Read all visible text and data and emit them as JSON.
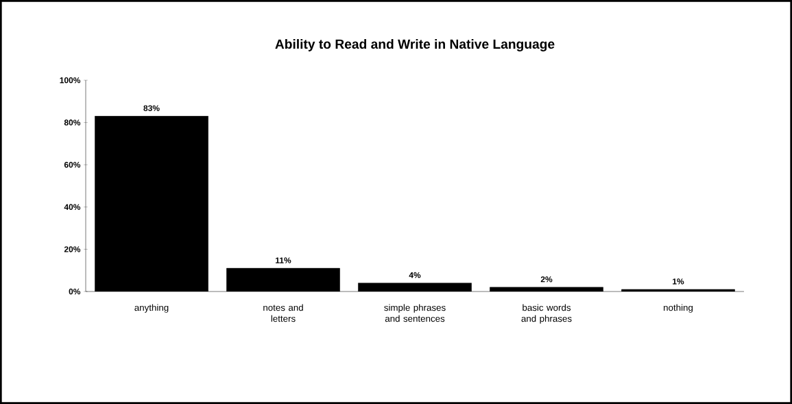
{
  "chart_data": {
    "type": "bar",
    "title": "Ability to Read and Write in Native Language",
    "categories": [
      "anything",
      "notes and letters",
      "simple phrases and sentences",
      "basic words and phrases",
      "nothing"
    ],
    "values": [
      83,
      11,
      4,
      2,
      1
    ],
    "value_labels": [
      "83%",
      "11%",
      "4%",
      "2%",
      "1%"
    ],
    "color": "#000000",
    "ylim": [
      0,
      100
    ],
    "yticks": [
      {
        "value": 0,
        "label": "0%"
      },
      {
        "value": 20,
        "label": "20%"
      },
      {
        "value": 40,
        "label": "40%"
      },
      {
        "value": 60,
        "label": "60%"
      },
      {
        "value": 80,
        "label": "80%"
      },
      {
        "value": 100,
        "label": "100%"
      }
    ]
  }
}
